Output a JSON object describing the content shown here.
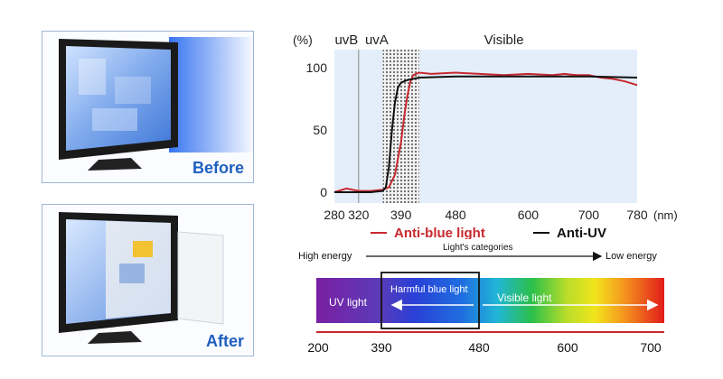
{
  "panels": {
    "before_label": "Before",
    "after_label": "After"
  },
  "chart_data": {
    "type": "line",
    "ylabel": "(%)",
    "xlabel": "(nm)",
    "xlim": [
      280,
      780
    ],
    "ylim": [
      0,
      100
    ],
    "x_ticks": [
      280,
      320,
      390,
      480,
      600,
      700,
      780
    ],
    "y_ticks": [
      0,
      50,
      100
    ],
    "region_labels": [
      {
        "label": "uvB",
        "x": 300
      },
      {
        "label": "uvA",
        "x": 350
      },
      {
        "label": "Visible",
        "x": 560
      }
    ],
    "uvb_uva_boundary": 320,
    "blocked_band": [
      360,
      420
    ],
    "grid": false,
    "legend_position": "bottom",
    "series": [
      {
        "name": "Anti-blue light",
        "color": "#c8282e",
        "x": [
          280,
          300,
          320,
          340,
          360,
          370,
          380,
          390,
          395,
          400,
          405,
          410,
          420,
          440,
          480,
          520,
          560,
          600,
          640,
          660,
          680,
          700,
          720,
          740,
          760,
          780
        ],
        "y": [
          0,
          3,
          1,
          1,
          2,
          4,
          14,
          40,
          60,
          76,
          88,
          94,
          96,
          95,
          96,
          95,
          94,
          95,
          94,
          95,
          94,
          94,
          92,
          91,
          89,
          86
        ]
      },
      {
        "name": "Anti-UV",
        "color": "#111111",
        "x": [
          280,
          300,
          340,
          360,
          365,
          370,
          375,
          380,
          385,
          390,
          400,
          420,
          480,
          560,
          640,
          700,
          780
        ],
        "y": [
          0,
          0,
          0,
          1,
          4,
          20,
          50,
          72,
          84,
          88,
          90,
          92,
          93,
          93,
          93,
          93,
          92
        ]
      }
    ]
  },
  "spectrum": {
    "title": "Light's categories",
    "high_energy_label": "High energy",
    "low_energy_label": "Low energy",
    "uv_label": "UV light",
    "harmful_label": "Harmful blue light",
    "visible_label": "Visible light",
    "axis_ticks": [
      {
        "value": 200,
        "label": "200"
      },
      {
        "value": 390,
        "label": "390"
      },
      {
        "value": 480,
        "label": "480"
      },
      {
        "value": 600,
        "label": "600"
      },
      {
        "value": 700,
        "label": "700"
      }
    ]
  },
  "colors": {
    "anti_blue": "#c8282e",
    "anti_uv": "#111111",
    "caption_blue": "#1f5fbf",
    "chart_bg": "#e3eefa"
  }
}
